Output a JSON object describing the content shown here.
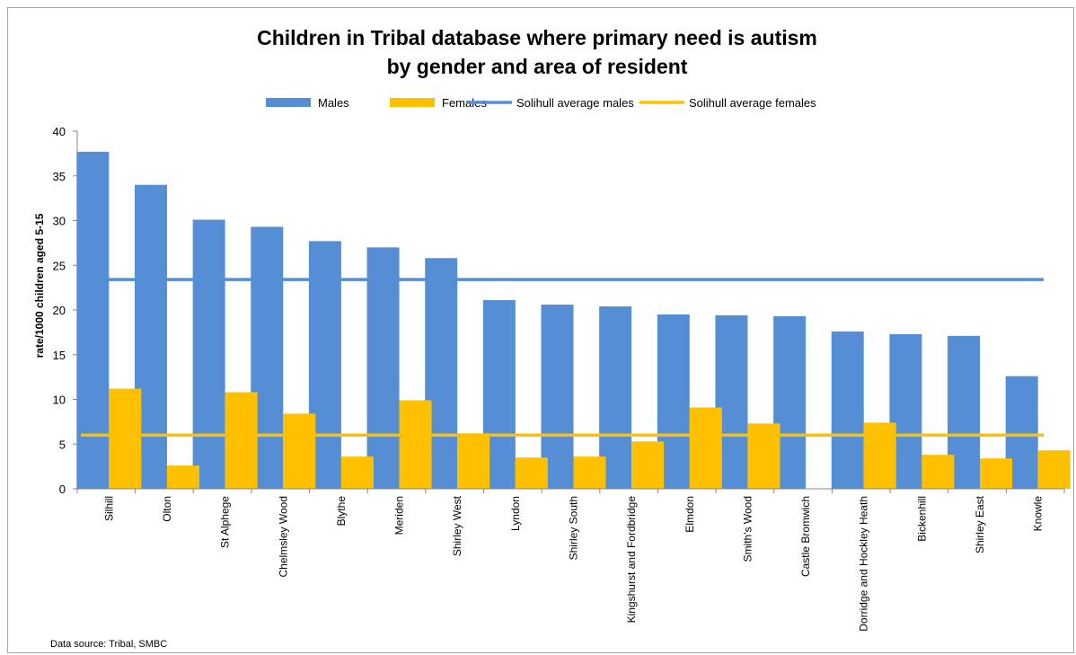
{
  "chart_data": {
    "type": "bar",
    "title_lines": [
      "Children in Tribal database  where primary need is autism",
      "by gender and area of resident"
    ],
    "ylabel": "rate/1000 children aged 5-15",
    "ylim": [
      0,
      40
    ],
    "yticks": [
      0,
      5,
      10,
      15,
      20,
      25,
      30,
      35,
      40
    ],
    "grid": false,
    "legend_position": "top",
    "categories": [
      "Silhill",
      "Olton",
      "St Alphege",
      "Chelmsley Wood",
      "Blythe",
      "Meriden",
      "Shirley West",
      "Lyndon",
      "Shirley South",
      "Kingshurst and Fordbridge",
      "Elmdon",
      "Smith's Wood",
      "Castle Bromwich",
      "Dorridge and Hockley Heath",
      "Bickenhill",
      "Shirley East",
      "Knowle"
    ],
    "series": [
      {
        "name": "Males",
        "kind": "bar",
        "color": "#558ed5",
        "values": [
          37.7,
          34.0,
          30.1,
          29.3,
          27.7,
          27.0,
          25.8,
          21.1,
          20.6,
          20.4,
          19.5,
          19.4,
          19.3,
          17.6,
          17.3,
          17.1,
          12.6
        ]
      },
      {
        "name": "Females",
        "kind": "bar",
        "color": "#ffc000",
        "values": [
          11.2,
          2.6,
          10.8,
          8.4,
          3.6,
          9.9,
          6.2,
          3.5,
          3.6,
          5.3,
          9.1,
          7.3,
          0,
          7.4,
          3.8,
          3.4,
          4.3
        ]
      },
      {
        "name": "Solihull average males",
        "kind": "line",
        "color": "#558ed5",
        "value": 23.4
      },
      {
        "name": "Solihull average females",
        "kind": "line",
        "color": "#ffc000",
        "value": 6.0
      }
    ],
    "source_note": "Data source: Tribal, SMBC"
  }
}
